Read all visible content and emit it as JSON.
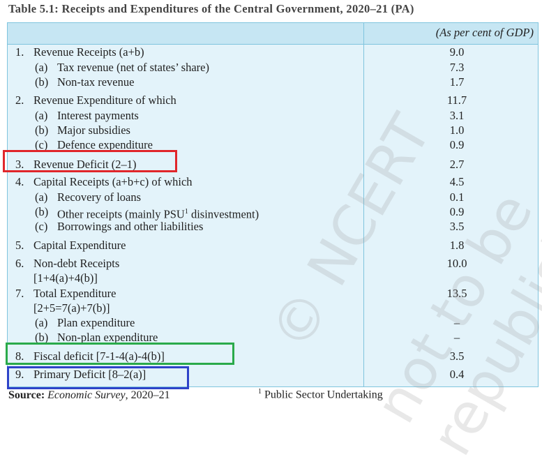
{
  "title": "Table 5.1: Receipts and Expenditures of the Central Government, 2020–21 (PA)",
  "table": {
    "header": "(As per cent of GDP)",
    "rows": [
      {
        "num": "1.",
        "label": "Revenue Receipts (a+b)",
        "value": "9.0"
      },
      {
        "num": "(a)",
        "label": "Tax revenue (net of states’ share)",
        "value": "7.3"
      },
      {
        "num": "(b)",
        "label": "Non-tax revenue",
        "value": "1.7"
      },
      {
        "num": "2.",
        "label": "Revenue Expenditure of which",
        "value": "11.7"
      },
      {
        "num": "(a)",
        "label": "Interest payments",
        "value": "3.1"
      },
      {
        "num": "(b)",
        "label": "Major subsidies",
        "value": "1.0"
      },
      {
        "num": "(c)",
        "label": "Defence expenditure",
        "value": "0.9"
      },
      {
        "num": "3.",
        "label": "Revenue Deficit (2–1)",
        "value": "2.7"
      },
      {
        "num": "4.",
        "label": "Capital Receipts (a+b+c) of which",
        "value": "4.5"
      },
      {
        "num": "(a)",
        "label": "Recovery of loans",
        "value": "0.1"
      },
      {
        "num": "(b)",
        "label": "Other receipts (mainly PSU",
        "sup": "1",
        "label_after": " disinvestment)",
        "value": "0.9"
      },
      {
        "num": "(c)",
        "label": "Borrowings and other liabilities",
        "value": "3.5"
      },
      {
        "num": "5.",
        "label": "Capital Expenditure",
        "value": "1.8"
      },
      {
        "num": "6.",
        "label": "Non-debt Receipts",
        "line2": "[1+4(a)+4(b)]",
        "value": "10.0"
      },
      {
        "num": "7.",
        "label": "Total Expenditure",
        "line2": "[2+5=7(a)+7(b)]",
        "value": "13.5"
      },
      {
        "num": "(a)",
        "label": "Plan expenditure",
        "value": "–"
      },
      {
        "num": "(b)",
        "label": "Non-plan expenditure",
        "value": "–"
      },
      {
        "num": "8.",
        "label": "Fiscal deficit [7-1-4(a)-4(b)]",
        "value": "3.5"
      },
      {
        "num": "9.",
        "label": "Primary Deficit [8–2(a)]",
        "value": "0.4"
      }
    ]
  },
  "source": {
    "label": "Source:",
    "publication": "Economic Survey",
    "year": ", 2020–21"
  },
  "footnote": {
    "mark": "1",
    "text": "Public Sector Undertaking"
  },
  "watermark": [
    "© NCERT",
    "not to be republished"
  ]
}
